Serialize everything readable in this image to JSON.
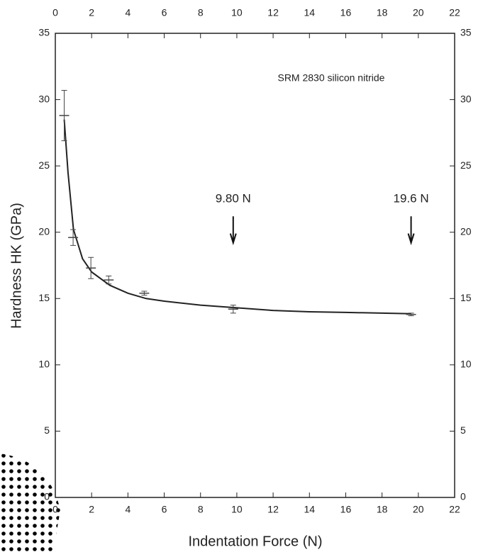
{
  "chart_data": {
    "type": "scatter",
    "x_label": "Indentation Force (N)",
    "y_label": "Hardness HK (GPa)",
    "annotations": [
      "SRM 2830 silicon nitride",
      "9.80 N",
      "19.6 N"
    ],
    "x": [
      0.49,
      0.98,
      1.96,
      2.94,
      4.9,
      9.8,
      19.6
    ],
    "values": [
      28.8,
      19.6,
      17.3,
      16.4,
      15.4,
      14.2,
      13.8
    ],
    "errors": [
      1.9,
      0.6,
      0.8,
      0.3,
      0.15,
      0.3,
      0.1
    ],
    "fit": {
      "x": [
        0.49,
        0.7,
        1,
        1.5,
        2,
        3,
        4,
        5,
        6,
        8,
        10,
        12,
        14,
        16,
        18,
        19.6
      ],
      "values": [
        28.5,
        24.5,
        20.2,
        18.0,
        17.0,
        16.0,
        15.4,
        15.0,
        14.8,
        14.5,
        14.3,
        14.1,
        14.0,
        13.95,
        13.9,
        13.85
      ]
    },
    "color": "#222222",
    "xlim": [
      0,
      22
    ],
    "xticks": [
      0,
      2,
      4,
      6,
      8,
      10,
      12,
      14,
      16,
      18,
      20,
      22
    ],
    "ylim": [
      0,
      35
    ],
    "yticks": [
      0,
      5,
      10,
      15,
      20,
      25,
      30,
      35
    ]
  }
}
